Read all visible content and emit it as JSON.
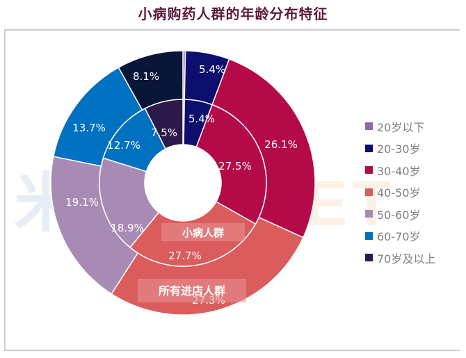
{
  "title": "小病购药人群的年龄分布特征",
  "chart_data": {
    "type": "pie",
    "subtype": "nested-donut",
    "title": "小病购药人群的年龄分布特征",
    "categories": [
      "20岁以下",
      "20-30岁",
      "30-40岁",
      "40-50岁",
      "50-60岁",
      "60-70岁",
      "70岁及以上"
    ],
    "colors": [
      "#8e6aa8",
      "#0c0f6e",
      "#b50a48",
      "#db5c5c",
      "#a88bb5",
      "#0070c0",
      "#2c1a4a"
    ],
    "series": [
      {
        "name": "小病人群",
        "ring": "inner",
        "values": [
          0.3,
          5.4,
          27.5,
          27.7,
          18.9,
          12.7,
          7.5
        ],
        "labels": [
          "",
          "5.4%",
          "27.5%",
          "27.7%",
          "18.9%",
          "12.7%",
          "7.5%"
        ]
      },
      {
        "name": "所有进店人群",
        "ring": "outer",
        "values": [
          0.3,
          5.4,
          26.1,
          27.3,
          19.1,
          13.7,
          8.1
        ],
        "labels": [
          "",
          "5.4%",
          "26.1%",
          "27.3%",
          "19.1%",
          "13.7%",
          "8.1%"
        ]
      }
    ],
    "outer_colors_override": {
      "70岁及以上": "#0a1638"
    },
    "legend_position": "right"
  },
  "legend": [
    {
      "label": "20岁以下",
      "color": "#8e6aa8"
    },
    {
      "label": "20-30岁",
      "color": "#0c0f6e"
    },
    {
      "label": "30-40岁",
      "color": "#b50a48"
    },
    {
      "label": "40-50岁",
      "color": "#db5c5c"
    },
    {
      "label": "50-60岁",
      "color": "#a88bb5"
    },
    {
      "label": "60-70岁",
      "color": "#0070c0"
    },
    {
      "label": "70岁及以上",
      "color": "#2c1a4a"
    }
  ],
  "ring_labels": {
    "inner": "小病人群",
    "outer": "所有进店人群"
  },
  "watermark": {
    "part1": "米内",
    "part2": "MENET"
  }
}
